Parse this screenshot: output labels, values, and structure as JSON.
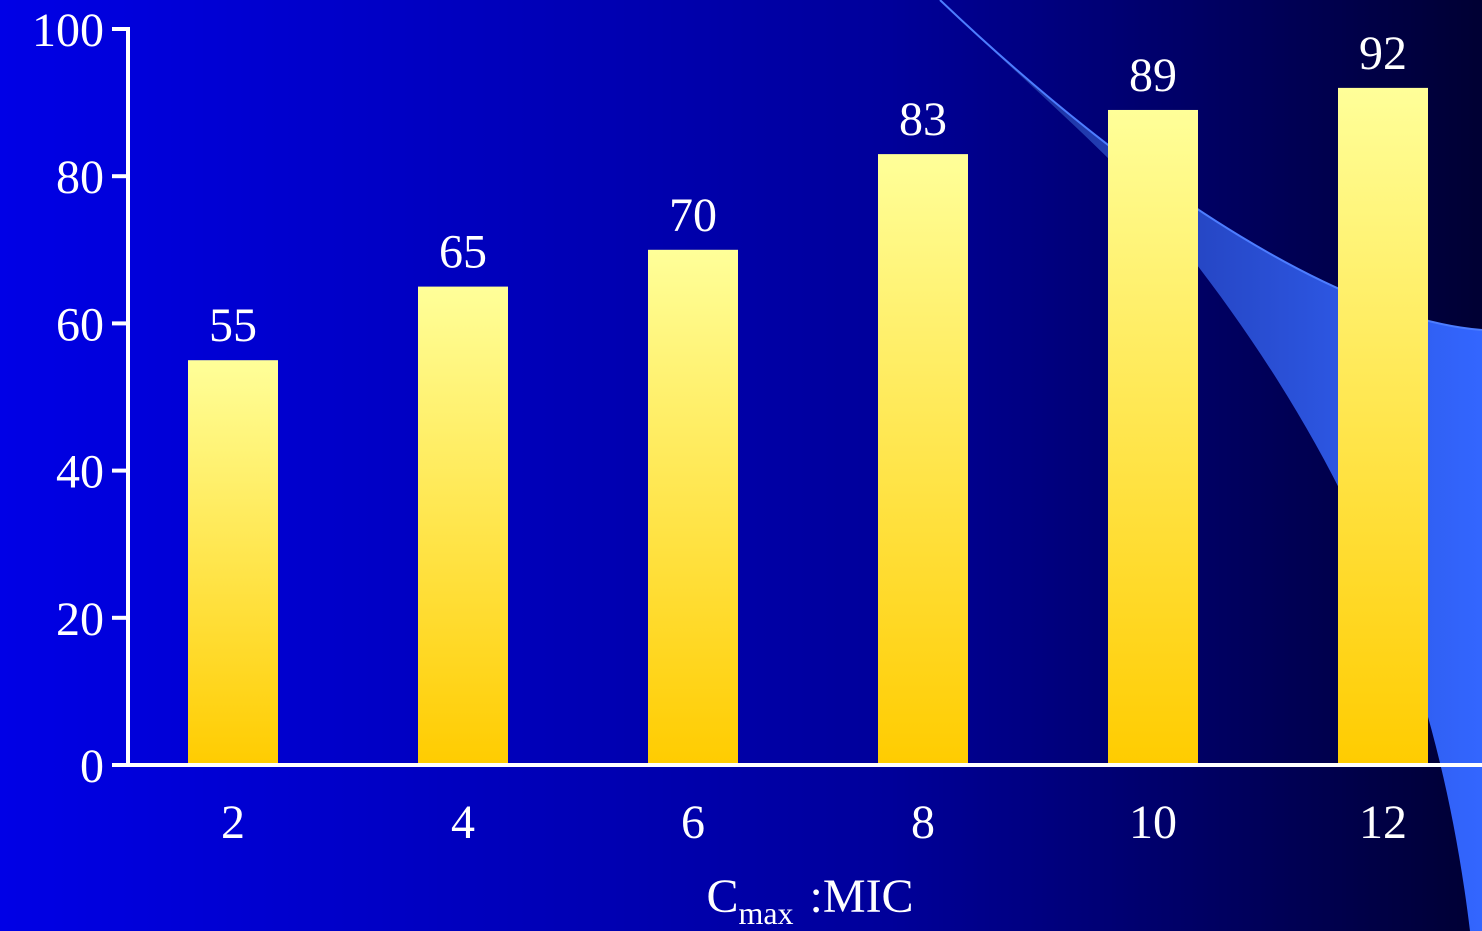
{
  "chart_data": {
    "type": "bar",
    "categories": [
      "2",
      "4",
      "6",
      "8",
      "10",
      "12"
    ],
    "values": [
      55,
      65,
      70,
      83,
      89,
      92
    ],
    "colors": [
      "#ffff99",
      "#ffcc00"
    ],
    "ylim": [
      0,
      100
    ],
    "yticks": [
      0,
      20,
      40,
      60,
      80,
      100
    ],
    "x_label_parts": [
      "C",
      "max",
      ":MIC"
    ]
  }
}
